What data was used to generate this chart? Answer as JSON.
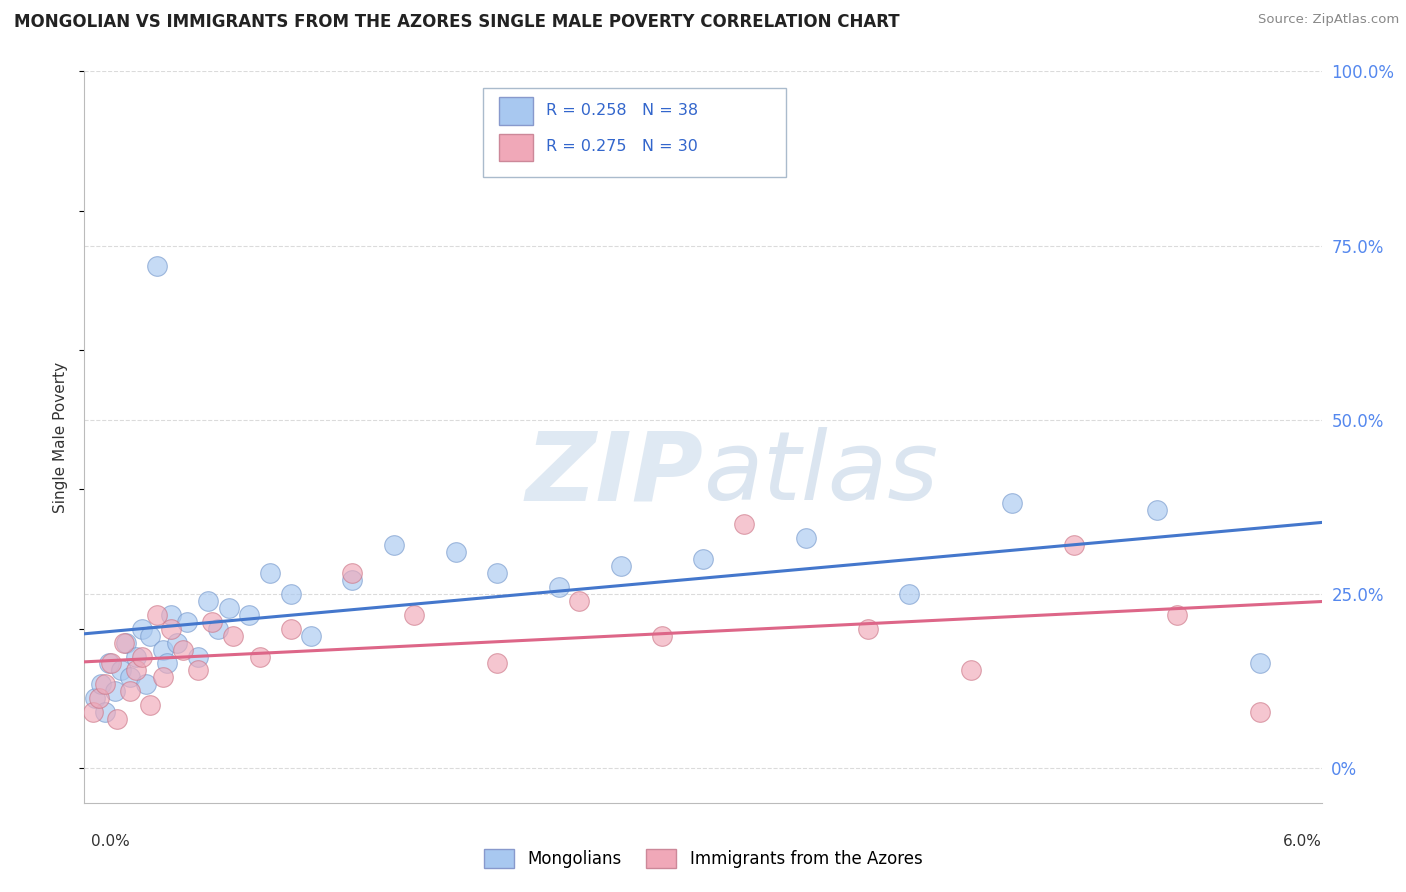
{
  "title": "MONGOLIAN VS IMMIGRANTS FROM THE AZORES SINGLE MALE POVERTY CORRELATION CHART",
  "source": "Source: ZipAtlas.com",
  "ylabel": "Single Male Poverty",
  "xmin": 0.0,
  "xmax": 6.0,
  "ymin": -5.0,
  "ymax": 100.0,
  "ytick_values": [
    0,
    25,
    50,
    75,
    100
  ],
  "legend_mongolians": "Mongolians",
  "legend_azores": "Immigrants from the Azores",
  "r_mongolians": "0.258",
  "n_mongolians": "38",
  "r_azores": "0.275",
  "n_azores": "30",
  "color_mongolians": "#a8c8f0",
  "color_azores": "#f0a8b8",
  "color_blue_line": "#4477cc",
  "color_pink_line": "#dd6688",
  "color_legend_text": "#3366cc",
  "color_right_axis": "#5588ee",
  "mongolians_x": [
    0.05,
    0.08,
    0.1,
    0.12,
    0.15,
    0.18,
    0.2,
    0.22,
    0.25,
    0.28,
    0.3,
    0.32,
    0.35,
    0.38,
    0.4,
    0.42,
    0.45,
    0.5,
    0.55,
    0.6,
    0.65,
    0.7,
    0.8,
    0.9,
    1.0,
    1.1,
    1.3,
    1.5,
    1.8,
    2.0,
    2.3,
    2.6,
    3.0,
    3.5,
    4.0,
    4.5,
    5.2,
    5.7
  ],
  "mongolians_y": [
    10,
    12,
    8,
    15,
    11,
    14,
    18,
    13,
    16,
    20,
    12,
    19,
    72,
    17,
    15,
    22,
    18,
    21,
    16,
    24,
    20,
    23,
    22,
    28,
    25,
    19,
    27,
    32,
    31,
    28,
    26,
    29,
    30,
    33,
    25,
    38,
    37,
    15
  ],
  "azores_x": [
    0.04,
    0.07,
    0.1,
    0.13,
    0.16,
    0.19,
    0.22,
    0.25,
    0.28,
    0.32,
    0.35,
    0.38,
    0.42,
    0.48,
    0.55,
    0.62,
    0.72,
    0.85,
    1.0,
    1.3,
    1.6,
    2.0,
    2.4,
    2.8,
    3.2,
    3.8,
    4.3,
    4.8,
    5.3,
    5.7
  ],
  "azores_y": [
    8,
    10,
    12,
    15,
    7,
    18,
    11,
    14,
    16,
    9,
    22,
    13,
    20,
    17,
    14,
    21,
    19,
    16,
    20,
    28,
    22,
    15,
    24,
    19,
    35,
    20,
    14,
    32,
    22,
    8
  ],
  "background_color": "#ffffff",
  "grid_color": "#cccccc"
}
